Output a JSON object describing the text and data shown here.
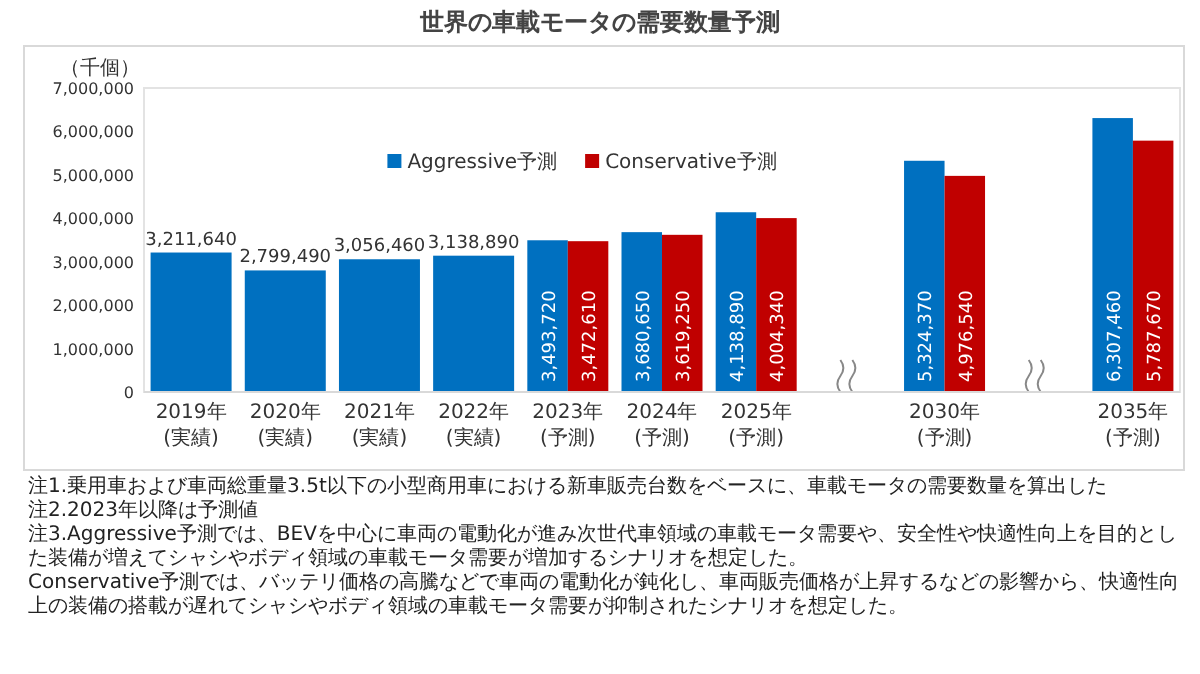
{
  "chart_data": {
    "type": "bar",
    "title": "世界の車載モータの需要数量予測",
    "ylabel": "（千個）",
    "categories": [
      "2019年\n(実績)",
      "2020年\n(実績)",
      "2021年\n(実績)",
      "2022年\n(実績)",
      "2023年\n(予測)",
      "2024年\n(予測)",
      "2025年\n(予測)",
      null,
      "2030年\n(予測)",
      null,
      "2035年\n(予測)"
    ],
    "series": [
      {
        "color": "#0070c0",
        "values": [
          3211640,
          2799490,
          3056460,
          3138890,
          null,
          null,
          null,
          null,
          null,
          null,
          null
        ],
        "value_labels": [
          "3,211,640",
          "2,799,490",
          "3,056,460",
          "3,138,890",
          null,
          null,
          null,
          null,
          null,
          null,
          null
        ]
      },
      {
        "name": "Aggressive予測",
        "color": "#0070c0",
        "values": [
          null,
          null,
          null,
          null,
          3493720,
          3680650,
          4138890,
          null,
          5324370,
          null,
          6307460
        ],
        "value_labels": [
          null,
          null,
          null,
          null,
          "3,493,720",
          "3,680,650",
          "4,138,890",
          null,
          "5,324,370",
          null,
          "6,307,460"
        ]
      },
      {
        "name": "Conservative予測",
        "color": "#c00000",
        "values": [
          null,
          null,
          null,
          null,
          3472610,
          3619250,
          4004340,
          null,
          4976540,
          null,
          5787670
        ],
        "value_labels": [
          null,
          null,
          null,
          null,
          "3,472,610",
          "3,619,250",
          "4,004,340",
          null,
          "4,976,540",
          null,
          "5,787,670"
        ]
      }
    ],
    "ylim": [
      0,
      7000000
    ],
    "yticks": [
      0,
      {
        "value": 1000000,
        "label": "1,000,000"
      },
      {
        "value": 2000000,
        "label": "2,000,000"
      },
      {
        "value": 3000000,
        "label": "3,000,000"
      },
      {
        "value": 4000000,
        "label": "4,000,000"
      },
      {
        "value": 5000000,
        "label": "5,000,000"
      },
      {
        "value": 6000000,
        "label": "6,000,000"
      },
      {
        "value": 7000000,
        "label": "7,000,000"
      }
    ],
    "legend": "top",
    "grid": false,
    "annotations": [
      "注1.乗用車および車両総重量3.5t以下の小型商用車における新車販売台数をベースに、車載モータの需要数量を算出した",
      "注2.2023年以降は予測値",
      "注3.Aggressive予測では、BEVを中心に車両の電動化が進み次世代車領域の車載モータ需要や、安全性や快適性向上を目的とした装備が増えてシャシやボディ領域の車載モータ需要が増加するシナリオを想定した。",
      "Conservative予測では、バッテリ価格の高騰などで車両の電動化が鈍化し、車両販売価格が上昇するなどの影響から、快適性向上の装備の搭載が遅れてシャシやボディ領域の車載モータ需要が抑制されたシナリオを想定した。"
    ]
  }
}
